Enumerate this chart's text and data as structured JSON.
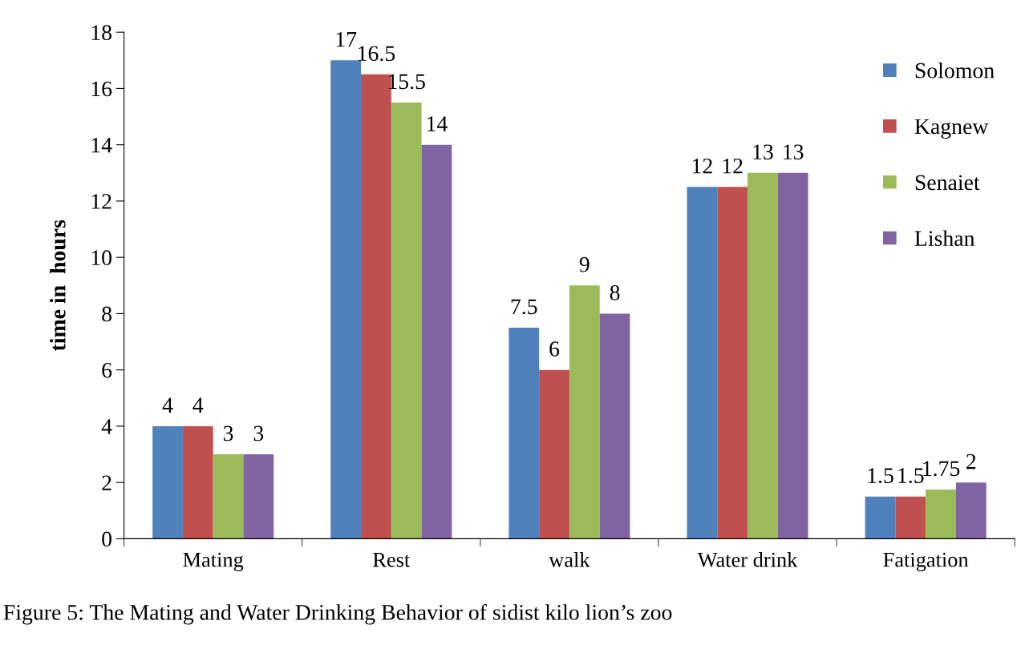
{
  "chart_data": {
    "type": "bar",
    "ylabel": "time in  hours",
    "categories": [
      "Mating",
      "Rest",
      "walk",
      "Water drink",
      "Fatigation"
    ],
    "series": [
      {
        "name": "Solomon",
        "color": "#4f81bd",
        "values": [
          4,
          17,
          7.5,
          12.5,
          1.5
        ],
        "value_labels": [
          "4",
          "17",
          "7.5",
          "12",
          "1.5"
        ]
      },
      {
        "name": "Kagnew",
        "color": "#c0504d",
        "values": [
          4,
          16.5,
          6,
          12.5,
          1.5
        ],
        "value_labels": [
          "4",
          "16.5",
          "6",
          "12",
          "1.5"
        ]
      },
      {
        "name": "Senaiet",
        "color": "#9bbb59",
        "values": [
          3,
          15.5,
          9,
          13,
          1.75
        ],
        "value_labels": [
          "3",
          "15.5",
          "9",
          "13",
          "1.75"
        ]
      },
      {
        "name": "Lishan",
        "color": "#8064a2",
        "values": [
          3,
          14,
          8,
          13,
          2
        ],
        "value_labels": [
          "3",
          "14",
          "8",
          "13",
          "2"
        ]
      }
    ],
    "ylim": [
      0,
      18
    ],
    "yticks": [
      0,
      2,
      4,
      6,
      8,
      10,
      12,
      14,
      16,
      18
    ],
    "grid": false,
    "legend": "top right",
    "annotations": [
      "Figure 5: The Mating and Water Drinking Behavior of sidist kilo lion’s zoo"
    ]
  }
}
